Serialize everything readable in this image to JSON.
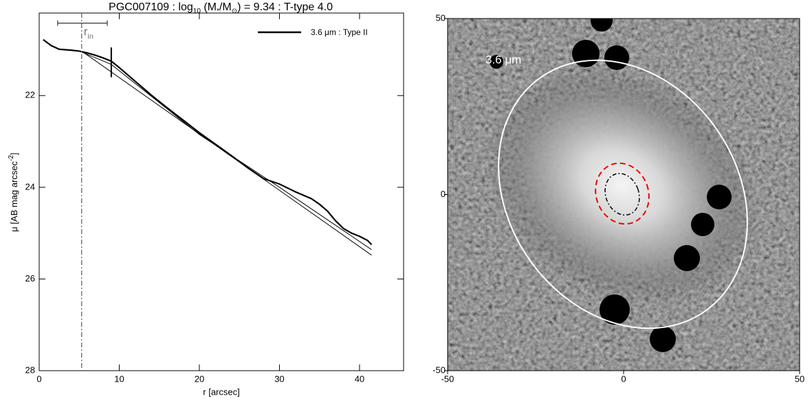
{
  "chart_data": [
    {
      "type": "line",
      "title": [
        "PGC007109 : log",
        "10",
        " (M",
        "*",
        "/M",
        "⊙",
        ") = 9.34 : T-type 4.0"
      ],
      "xlabel": "r [arcsec]",
      "ylabel": [
        "μ [AB mag arcsec",
        "-2",
        "]"
      ],
      "xlim": [
        0,
        45.5
      ],
      "xticks": [
        0,
        10,
        20,
        30,
        40
      ],
      "ylim": [
        28,
        20.2
      ],
      "yticks": [
        22,
        24,
        26,
        28
      ],
      "legend": "upper right",
      "series": [
        {
          "name": "3.6 μm : Type II",
          "color": "#000000",
          "x": [
            0.5,
            1.5,
            2.5,
            4,
            5,
            6,
            7,
            8,
            9,
            10,
            12,
            14,
            16,
            18,
            20,
            22,
            24,
            26,
            28,
            30,
            32,
            34,
            35,
            36,
            37,
            38,
            39,
            40,
            41,
            41.5
          ],
          "values": [
            20.78,
            20.91,
            20.99,
            21.01,
            21.03,
            21.07,
            21.12,
            21.18,
            21.25,
            21.39,
            21.69,
            21.99,
            22.27,
            22.54,
            22.81,
            23.06,
            23.31,
            23.57,
            23.81,
            23.93,
            24.1,
            24.25,
            24.37,
            24.52,
            24.73,
            24.9,
            25.0,
            25.07,
            25.16,
            25.25
          ]
        }
      ],
      "fits": [
        {
          "x": [
            5.3,
            41.5
          ],
          "values": [
            21.03,
            25.48
          ]
        },
        {
          "x": [
            5.3,
            9,
            20,
            30,
            41.5
          ],
          "values": [
            21.05,
            21.32,
            22.85,
            24.0,
            25.36
          ]
        }
      ],
      "r_in": 5.3,
      "r_in_label": [
        "r",
        "in"
      ],
      "r_in_range": [
        2.3,
        8.5
      ],
      "r_in_bar_y": 20.42,
      "break": 9.0,
      "break_range": [
        20.95,
        21.6
      ]
    },
    {
      "type": "image",
      "label": "3.6 μm",
      "xlim": [
        -50,
        50
      ],
      "xticks": [
        -50,
        0,
        50
      ],
      "ylim": [
        -50,
        50
      ],
      "yticks": [
        -50,
        0,
        50
      ]
    }
  ]
}
